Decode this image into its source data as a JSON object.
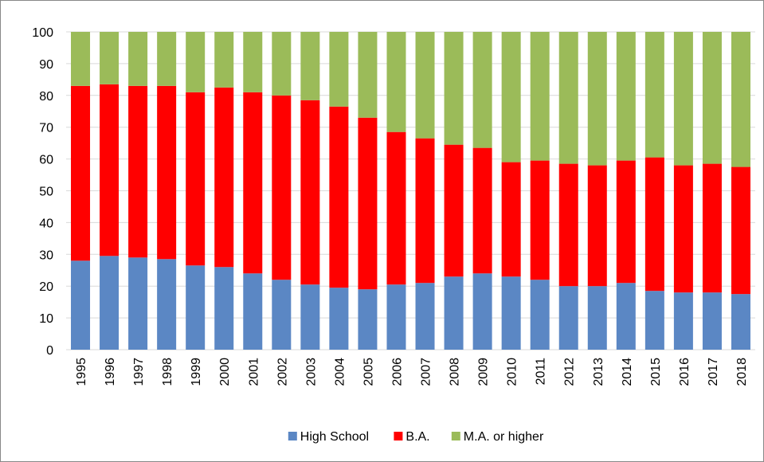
{
  "chart_data": {
    "type": "stacked-bar",
    "categories": [
      "1995",
      "1996",
      "1997",
      "1998",
      "1999",
      "2000",
      "2001",
      "2002",
      "2003",
      "2004",
      "2005",
      "2006",
      "2007",
      "2008",
      "2009",
      "2010",
      "2011",
      "2012",
      "2013",
      "2014",
      "2015",
      "2016",
      "2017",
      "2018"
    ],
    "series": [
      {
        "name": "High School",
        "color": "#5b87c4",
        "values": [
          28,
          29.5,
          29,
          28.5,
          26.5,
          26,
          24,
          22,
          20.5,
          19.5,
          19,
          20.5,
          21,
          23,
          24,
          23,
          22,
          20,
          20,
          21,
          18.5,
          18,
          18,
          17.5
        ]
      },
      {
        "name": "B.A.",
        "color": "#ff0000",
        "values": [
          55,
          54,
          54,
          54.5,
          54.5,
          56.5,
          57,
          58,
          58,
          57,
          54,
          48,
          45.5,
          41.5,
          39.5,
          36,
          37.5,
          38.5,
          38,
          38.5,
          42,
          40,
          40.5,
          40
        ]
      },
      {
        "name": "M.A. or higher",
        "color": "#9bbb59",
        "values": [
          17,
          16.5,
          17,
          17,
          19,
          17.5,
          19,
          20,
          21.5,
          23.5,
          27,
          31.5,
          33.5,
          35.5,
          36.5,
          41,
          40.5,
          41.5,
          42,
          40.5,
          39.5,
          42,
          41.5,
          42.5
        ]
      }
    ],
    "ylim": [
      0,
      100
    ],
    "yticks": [
      0,
      10,
      20,
      30,
      40,
      50,
      60,
      70,
      80,
      90,
      100
    ],
    "grid": true,
    "legend": "bottom"
  }
}
